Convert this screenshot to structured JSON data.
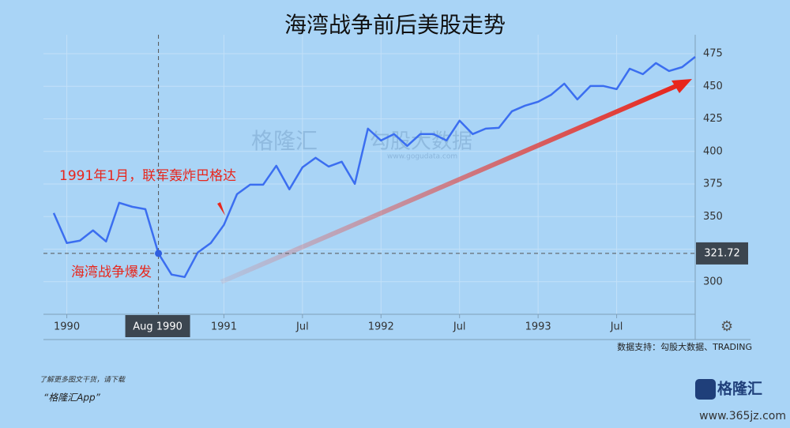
{
  "chart_data": {
    "type": "line",
    "title": "海湾战争前后美股走势",
    "x": [
      "1989-12",
      "1990-01",
      "1990-02",
      "1990-03",
      "1990-04",
      "1990-05",
      "1990-06",
      "1990-07",
      "1990-08",
      "1990-09",
      "1990-10",
      "1990-11",
      "1990-12",
      "1991-01",
      "1991-02",
      "1991-03",
      "1991-04",
      "1991-05",
      "1991-06",
      "1991-07",
      "1991-08",
      "1991-09",
      "1991-10",
      "1991-11",
      "1991-12",
      "1992-01",
      "1992-02",
      "1992-03",
      "1992-04",
      "1992-05",
      "1992-06",
      "1992-07",
      "1992-08",
      "1992-09",
      "1992-10",
      "1992-11",
      "1992-12",
      "1993-01",
      "1993-02",
      "1993-03",
      "1993-04",
      "1993-05",
      "1993-06",
      "1993-07",
      "1993-08",
      "1993-09",
      "1993-10",
      "1993-11",
      "1993-12",
      "1994-01"
    ],
    "series": [
      {
        "color": "#3b6ef0",
        "values": [
          352.7,
          329.7,
          331.5,
          339.4,
          330.9,
          360.6,
          357.5,
          355.7,
          321.72,
          305.5,
          303.6,
          322.4,
          329.7,
          343.6,
          367.2,
          374.5,
          374.5,
          389.0,
          370.9,
          387.8,
          395.1,
          388.4,
          392.1,
          375.1,
          417.5,
          408.4,
          413.3,
          404.2,
          413.3,
          413.3,
          408.4,
          423.6,
          413.3,
          417.5,
          418.1,
          430.8,
          435.1,
          438.1,
          443.5,
          452.0,
          439.9,
          450.2,
          450.2,
          447.8,
          463.5,
          459.3,
          467.8,
          461.7,
          464.7,
          472.6
        ]
      }
    ],
    "xlim": [
      "1989-12",
      "1994-01"
    ],
    "xticks": [
      {
        "value": "1990-01",
        "label": "1990"
      },
      {
        "value": "1991-01",
        "label": "1991"
      },
      {
        "value": "1991-07",
        "label": "Jul"
      },
      {
        "value": "1992-01",
        "label": "1992"
      },
      {
        "value": "1992-07",
        "label": "Jul"
      },
      {
        "value": "1993-01",
        "label": "1993"
      },
      {
        "value": "1993-07",
        "label": "Jul"
      }
    ],
    "ylim": [
      275,
      475
    ],
    "yticks": [
      300,
      325,
      350,
      375,
      400,
      425,
      450,
      475
    ],
    "grid": true,
    "crosshair": {
      "x": {
        "value": "1990-08",
        "label": "Aug 1990"
      },
      "y": 321.72
    },
    "annotations": [
      {
        "text": "1991年1月，联军轰炸巴格达"
      },
      {
        "text": "海湾战争爆发"
      }
    ],
    "source": "数据支持：勾股大数据、TRADING",
    "watermark": {
      "brand": "格隆汇",
      "brand2": "勾股大数据",
      "url": "www.gogudata.com"
    }
  },
  "footer": {
    "line1": "了解更多图文干货，请下载",
    "line2": "“格隆汇App”",
    "logo": "格隆汇",
    "site": "www.365jz.com"
  }
}
